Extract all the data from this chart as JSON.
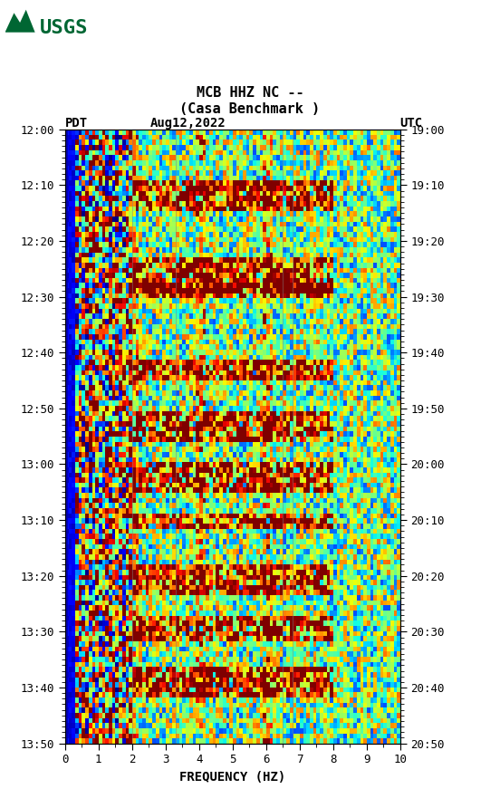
{
  "title_line1": "MCB HHZ NC --",
  "title_line2": "(Casa Benchmark )",
  "left_label": "PDT",
  "date_label": "Aug12,2022",
  "right_label": "UTC",
  "xlabel": "FREQUENCY (HZ)",
  "freq_min": 0,
  "freq_max": 10,
  "freq_ticks": [
    0,
    1,
    2,
    3,
    4,
    5,
    6,
    7,
    8,
    9,
    10
  ],
  "time_start_left": "12:00",
  "time_end_left": "13:50",
  "time_start_right": "19:00",
  "time_end_right": "20:50",
  "time_ticks_left": [
    "12:00",
    "12:10",
    "12:20",
    "12:30",
    "12:40",
    "12:50",
    "13:00",
    "13:10",
    "13:20",
    "13:30",
    "13:40",
    "13:50"
  ],
  "time_ticks_right": [
    "19:00",
    "19:10",
    "19:20",
    "19:30",
    "19:40",
    "19:50",
    "20:00",
    "20:10",
    "20:20",
    "20:30",
    "20:40",
    "20:50"
  ],
  "n_time": 120,
  "n_freq": 100,
  "random_seed": 42,
  "bg_color": "white",
  "spectrogram_cmap": "jet",
  "left_bar_color": "#0000aa",
  "usgs_green": "#006633"
}
